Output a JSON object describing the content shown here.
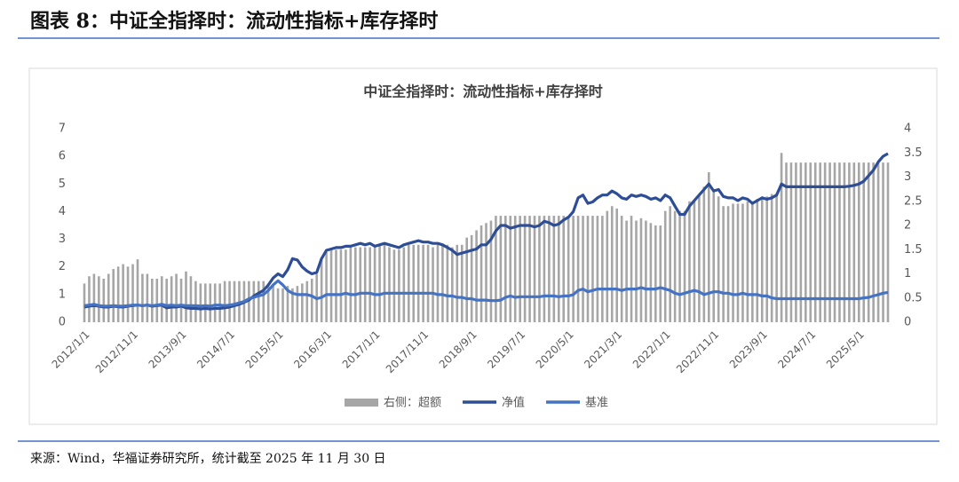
{
  "header": {
    "title": "图表 8：中证全指择时：流动性指标+库存择时"
  },
  "chart_data": {
    "type": "combo",
    "title": "中证全指择时：流动性指标+库存择时",
    "categories": [
      "2012/1/1",
      null,
      null,
      null,
      null,
      null,
      null,
      null,
      null,
      null,
      "2012/11/1",
      null,
      null,
      null,
      null,
      null,
      null,
      null,
      null,
      null,
      "2013/9/1",
      null,
      null,
      null,
      null,
      null,
      null,
      null,
      null,
      null,
      "2014/7/1",
      null,
      null,
      null,
      null,
      null,
      null,
      null,
      null,
      null,
      "2015/5/1",
      null,
      null,
      null,
      null,
      null,
      null,
      null,
      null,
      null,
      "2016/3/1",
      null,
      null,
      null,
      null,
      null,
      null,
      null,
      null,
      null,
      "2017/1/1",
      null,
      null,
      null,
      null,
      null,
      null,
      null,
      null,
      null,
      "2017/11/1",
      null,
      null,
      null,
      null,
      null,
      null,
      null,
      null,
      null,
      "2018/9/1",
      null,
      null,
      null,
      null,
      null,
      null,
      null,
      null,
      null,
      "2019/7/1",
      null,
      null,
      null,
      null,
      null,
      null,
      null,
      null,
      null,
      "2020/5/1",
      null,
      null,
      null,
      null,
      null,
      null,
      null,
      null,
      null,
      "2021/3/1",
      null,
      null,
      null,
      null,
      null,
      null,
      null,
      null,
      null,
      "2022/1/1",
      null,
      null,
      null,
      null,
      null,
      null,
      null,
      null,
      null,
      "2022/11/1",
      null,
      null,
      null,
      null,
      null,
      null,
      null,
      null,
      null,
      "2023/9/1",
      null,
      null,
      null,
      null,
      null,
      null,
      null,
      null,
      null,
      "2024/7/1",
      null,
      null,
      null,
      null,
      null,
      null,
      null,
      null,
      null,
      "2025/5/1",
      null,
      null,
      null,
      null,
      null,
      null
    ],
    "series": [
      {
        "name": "右侧：超额",
        "type": "bar",
        "axis": "y2",
        "color": "#a6a6a6",
        "values": [
          0.8,
          0.95,
          1.0,
          0.95,
          0.9,
          1.0,
          1.1,
          1.15,
          1.2,
          1.15,
          1.2,
          1.3,
          1.0,
          1.0,
          0.9,
          0.9,
          0.95,
          0.9,
          0.95,
          1.0,
          0.9,
          1.05,
          0.95,
          0.85,
          0.8,
          0.8,
          0.8,
          0.8,
          0.8,
          0.85,
          0.85,
          0.85,
          0.85,
          0.85,
          0.85,
          0.85,
          0.85,
          0.85,
          0.8,
          0.75,
          0.7,
          0.7,
          0.75,
          0.7,
          0.75,
          0.8,
          0.85,
          0.9,
          1.0,
          1.3,
          1.45,
          1.5,
          1.5,
          1.5,
          1.5,
          1.55,
          1.55,
          1.55,
          1.55,
          1.55,
          1.55,
          1.6,
          1.6,
          1.55,
          1.5,
          1.5,
          1.55,
          1.6,
          1.6,
          1.6,
          1.6,
          1.6,
          1.55,
          1.6,
          1.6,
          1.6,
          1.55,
          1.6,
          1.6,
          1.75,
          1.8,
          1.9,
          2.0,
          2.05,
          2.1,
          2.2,
          2.2,
          2.2,
          2.2,
          2.2,
          2.2,
          2.2,
          2.2,
          2.2,
          2.2,
          2.2,
          2.2,
          2.2,
          2.2,
          2.2,
          2.2,
          2.2,
          2.2,
          2.2,
          2.2,
          2.2,
          2.2,
          2.2,
          2.3,
          2.4,
          2.35,
          2.2,
          2.1,
          2.2,
          2.1,
          2.15,
          2.1,
          2.05,
          2.0,
          2.0,
          2.3,
          2.4,
          2.3,
          2.3,
          2.3,
          2.5,
          2.5,
          2.6,
          2.8,
          3.1,
          2.7,
          2.6,
          2.4,
          2.4,
          2.45,
          2.45,
          2.45,
          2.5,
          2.5,
          2.55,
          2.6,
          2.6,
          2.65,
          2.65,
          3.5,
          3.3,
          3.3,
          3.3,
          3.3,
          3.3,
          3.3,
          3.3,
          3.3,
          3.3,
          3.3,
          3.3,
          3.3,
          3.3,
          3.3,
          3.3,
          3.3,
          3.3,
          3.3,
          3.3,
          3.3,
          3.3,
          3.3
        ]
      },
      {
        "name": "净值",
        "type": "line",
        "color": "#2e4d97",
        "values": [
          0.55,
          0.58,
          0.6,
          0.58,
          0.55,
          0.55,
          0.58,
          0.56,
          0.55,
          0.58,
          0.6,
          0.62,
          0.6,
          0.62,
          0.58,
          0.6,
          0.62,
          0.52,
          0.55,
          0.55,
          0.58,
          0.52,
          0.5,
          0.5,
          0.48,
          0.5,
          0.48,
          0.5,
          0.5,
          0.52,
          0.55,
          0.6,
          0.65,
          0.72,
          0.8,
          0.95,
          1.05,
          1.15,
          1.35,
          1.6,
          1.75,
          1.65,
          1.9,
          2.3,
          2.25,
          2.0,
          1.85,
          1.75,
          1.8,
          2.3,
          2.6,
          2.65,
          2.7,
          2.7,
          2.75,
          2.75,
          2.8,
          2.85,
          2.8,
          2.85,
          2.75,
          2.8,
          2.85,
          2.8,
          2.75,
          2.7,
          2.8,
          2.85,
          2.9,
          2.95,
          2.9,
          2.9,
          2.85,
          2.85,
          2.8,
          2.7,
          2.6,
          2.45,
          2.5,
          2.55,
          2.6,
          2.65,
          2.8,
          2.8,
          3.0,
          3.3,
          3.5,
          3.5,
          3.4,
          3.45,
          3.5,
          3.5,
          3.5,
          3.45,
          3.5,
          3.65,
          3.6,
          3.5,
          3.55,
          3.7,
          3.8,
          4.0,
          4.5,
          4.6,
          4.3,
          4.35,
          4.5,
          4.6,
          4.6,
          4.75,
          4.65,
          4.5,
          4.45,
          4.6,
          4.55,
          4.6,
          4.55,
          4.45,
          4.5,
          4.4,
          4.6,
          4.5,
          4.2,
          3.9,
          3.9,
          4.2,
          4.4,
          4.6,
          4.8,
          5.0,
          4.75,
          4.8,
          4.55,
          4.5,
          4.5,
          4.4,
          4.5,
          4.45,
          4.3,
          4.4,
          4.5,
          4.45,
          4.5,
          4.6,
          5.0,
          4.9,
          4.9,
          4.9,
          4.9,
          4.9,
          4.9,
          4.9,
          4.9,
          4.9,
          4.9,
          4.9,
          4.9,
          4.9,
          4.92,
          4.95,
          5.0,
          5.1,
          5.3,
          5.5,
          5.8,
          6.0,
          6.1
        ]
      },
      {
        "name": "基准",
        "type": "line",
        "color": "#4472c4",
        "values": [
          0.6,
          0.62,
          0.65,
          0.6,
          0.58,
          0.58,
          0.6,
          0.58,
          0.58,
          0.6,
          0.62,
          0.62,
          0.6,
          0.62,
          0.6,
          0.62,
          0.65,
          0.6,
          0.62,
          0.6,
          0.62,
          0.6,
          0.6,
          0.6,
          0.58,
          0.6,
          0.58,
          0.62,
          0.62,
          0.6,
          0.62,
          0.65,
          0.7,
          0.75,
          0.85,
          0.9,
          0.95,
          1.0,
          1.15,
          1.35,
          1.5,
          1.35,
          1.15,
          1.05,
          1.0,
          1.0,
          1.0,
          0.95,
          0.85,
          0.9,
          1.0,
          1.0,
          1.0,
          1.0,
          1.05,
          1.0,
          1.0,
          1.05,
          1.05,
          1.05,
          1.0,
          1.0,
          1.05,
          1.05,
          1.05,
          1.05,
          1.05,
          1.05,
          1.05,
          1.05,
          1.05,
          1.05,
          1.05,
          1.0,
          1.0,
          0.95,
          0.95,
          0.9,
          0.9,
          0.85,
          0.85,
          0.8,
          0.8,
          0.8,
          0.78,
          0.78,
          0.8,
          0.9,
          0.95,
          0.9,
          0.92,
          0.92,
          0.92,
          0.92,
          0.92,
          0.95,
          0.95,
          0.95,
          0.92,
          0.95,
          0.95,
          1.0,
          1.15,
          1.2,
          1.1,
          1.15,
          1.2,
          1.2,
          1.2,
          1.2,
          1.2,
          1.15,
          1.2,
          1.2,
          1.2,
          1.25,
          1.2,
          1.2,
          1.2,
          1.25,
          1.2,
          1.15,
          1.05,
          1.0,
          1.05,
          1.1,
          1.15,
          1.1,
          1.0,
          1.05,
          1.1,
          1.1,
          1.05,
          1.05,
          1.0,
          1.0,
          1.05,
          1.0,
          1.0,
          1.0,
          0.95,
          0.95,
          0.88,
          0.85,
          0.85,
          0.85,
          0.85,
          0.85,
          0.85,
          0.85,
          0.85,
          0.85,
          0.85,
          0.85,
          0.85,
          0.85,
          0.85,
          0.85,
          0.85,
          0.85,
          0.85,
          0.88,
          0.9,
          0.95,
          1.0,
          1.05,
          1.08
        ]
      }
    ],
    "ylim": [
      0,
      7
    ],
    "yticks": [
      0,
      1,
      2,
      3,
      4,
      5,
      6,
      7
    ],
    "y2lim": [
      0,
      4
    ],
    "y2ticks": [
      0,
      0.5,
      1,
      1.5,
      2,
      2.5,
      3,
      3.5,
      4
    ]
  },
  "footer": {
    "source": "来源：Wind，华福证券研究所，统计截至 2025 年 11 月 30 日"
  }
}
